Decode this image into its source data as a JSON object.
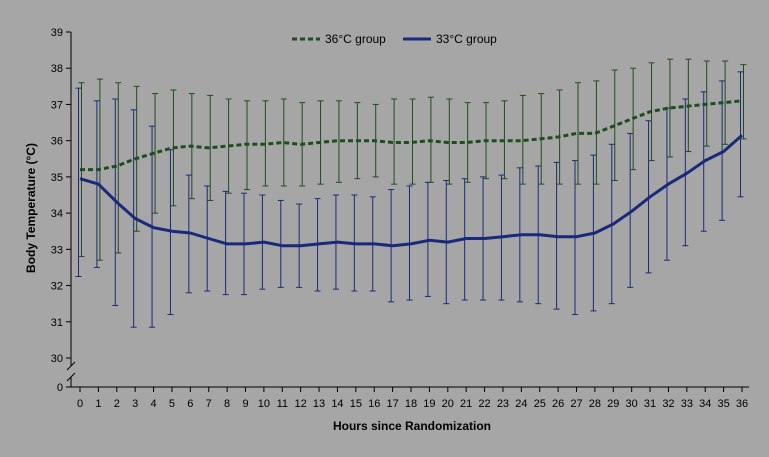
{
  "chart_data": {
    "type": "line",
    "xlabel": "Hours since Randomization",
    "ylabel": "Body Temperature (°C)",
    "x": [
      0,
      1,
      2,
      3,
      4,
      5,
      6,
      7,
      8,
      9,
      10,
      11,
      12,
      13,
      14,
      15,
      16,
      17,
      18,
      19,
      20,
      21,
      22,
      23,
      24,
      25,
      26,
      27,
      28,
      29,
      30,
      31,
      32,
      33,
      34,
      35,
      36
    ],
    "xlim": [
      0,
      36
    ],
    "ylim": [
      30,
      39
    ],
    "yticks": [
      30,
      31,
      32,
      33,
      34,
      35,
      36,
      37,
      38,
      39
    ],
    "y_break_label": "0",
    "y_axis_break": true,
    "grid": false,
    "legend_position": "top-center",
    "series": [
      {
        "name": "36°C group",
        "color": "#1e4d1e",
        "line_style": "dashed",
        "values": [
          35.2,
          35.2,
          35.3,
          35.5,
          35.65,
          35.8,
          35.85,
          35.8,
          35.85,
          35.9,
          35.9,
          35.95,
          35.9,
          35.95,
          36.0,
          36.0,
          36.0,
          35.95,
          35.95,
          36.0,
          35.95,
          35.95,
          36.0,
          36.0,
          36.0,
          36.05,
          36.1,
          36.2,
          36.2,
          36.4,
          36.6,
          36.8,
          36.9,
          36.95,
          37.0,
          37.05,
          37.1
        ],
        "upper": [
          37.6,
          37.7,
          37.6,
          37.5,
          37.3,
          37.4,
          37.3,
          37.25,
          37.15,
          37.1,
          37.1,
          37.15,
          37.05,
          37.1,
          37.1,
          37.05,
          37.0,
          37.15,
          37.15,
          37.2,
          37.15,
          37.05,
          37.05,
          37.1,
          37.25,
          37.3,
          37.4,
          37.6,
          37.65,
          37.95,
          38.0,
          38.15,
          38.25,
          38.25,
          38.2,
          38.2,
          38.1
        ],
        "lower": [
          32.8,
          32.7,
          32.9,
          33.5,
          34.0,
          34.2,
          34.4,
          34.35,
          34.55,
          34.65,
          34.75,
          34.75,
          34.75,
          34.8,
          34.85,
          34.95,
          35.0,
          34.8,
          34.8,
          34.85,
          34.8,
          34.85,
          34.95,
          34.95,
          34.8,
          34.8,
          34.8,
          34.8,
          34.8,
          34.9,
          35.2,
          35.45,
          35.55,
          35.7,
          35.85,
          35.9,
          36.05
        ]
      },
      {
        "name": "33°C group",
        "color": "#1a2a7a",
        "line_style": "solid",
        "values": [
          34.95,
          34.8,
          34.3,
          33.85,
          33.6,
          33.5,
          33.45,
          33.3,
          33.15,
          33.15,
          33.2,
          33.1,
          33.1,
          33.15,
          33.2,
          33.15,
          33.15,
          33.1,
          33.15,
          33.25,
          33.2,
          33.3,
          33.3,
          33.35,
          33.4,
          33.4,
          33.35,
          33.35,
          33.45,
          33.7,
          34.05,
          34.45,
          34.8,
          35.1,
          35.45,
          35.7,
          36.15
        ],
        "upper": [
          37.45,
          37.1,
          37.15,
          36.85,
          36.4,
          35.75,
          35.05,
          34.75,
          34.6,
          34.55,
          34.5,
          34.35,
          34.25,
          34.4,
          34.5,
          34.5,
          34.45,
          34.65,
          34.75,
          34.85,
          34.9,
          34.95,
          35.0,
          35.05,
          35.25,
          35.3,
          35.4,
          35.45,
          35.6,
          35.9,
          36.2,
          36.55,
          36.9,
          37.15,
          37.35,
          37.65,
          37.9
        ],
        "lower": [
          32.25,
          32.5,
          31.45,
          30.85,
          30.85,
          31.2,
          31.8,
          31.85,
          31.75,
          31.75,
          31.9,
          31.95,
          31.95,
          31.85,
          31.9,
          31.85,
          31.85,
          31.55,
          31.6,
          31.7,
          31.5,
          31.6,
          31.6,
          31.6,
          31.55,
          31.5,
          31.35,
          31.2,
          31.3,
          31.5,
          31.95,
          32.35,
          32.7,
          33.1,
          33.5,
          33.8,
          34.45
        ]
      }
    ]
  }
}
